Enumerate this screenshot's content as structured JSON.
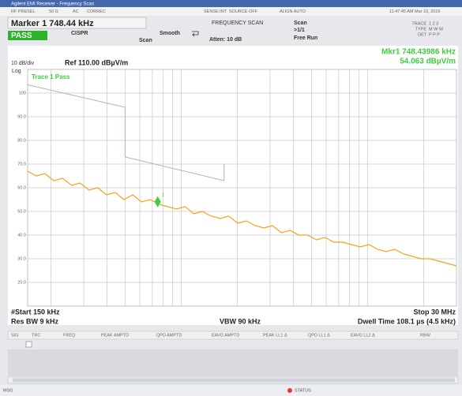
{
  "window": {
    "title": "Agilent EMI Receiver - Frequency Scan"
  },
  "status_row": [
    "RF PRESEL",
    "50 Ω",
    "AC",
    "CORREC",
    "SENSE:INT",
    "SOURCE OFF",
    "ALIGN AUTO",
    "11:47:45 AM Mar 10, 2016"
  ],
  "settings": {
    "marker": "Marker 1 748.44 kHz",
    "result": "PASS",
    "mode": "CISPR",
    "scan_label": "Scan",
    "smooth": "Smooth",
    "scan_type": "FREQUENCY SCAN",
    "atten": "Atten: 10 dB",
    "scan": "Scan",
    "scan_count": ">1/1",
    "run": "Free Run",
    "trace_rows": [
      [
        "TRACE",
        "1 2 3"
      ],
      [
        "TYPE",
        "M W W"
      ],
      [
        "DET",
        "P P P"
      ]
    ]
  },
  "chart_data": {
    "type": "line",
    "marker_readout": [
      "Mkr1 748.43986 kHz",
      "54.063 dBµV/m"
    ],
    "scale_label": "10 dB/div",
    "ref_label": "Ref 110.00 dBµV/m",
    "log_label": "Log",
    "trace_status": "Trace 1 Pass",
    "xlog": true,
    "xlim": [
      0.15,
      30
    ],
    "xticks": [
      0.2,
      0.3,
      0.4,
      0.5,
      0.6,
      0.7,
      0.8,
      0.9,
      1,
      2,
      3,
      4,
      5,
      6,
      7,
      8,
      9,
      10,
      20
    ],
    "ylim": [
      10,
      110
    ],
    "yticks": [
      {
        "value": 100,
        "label": "100"
      },
      {
        "value": 90,
        "label": "90.0"
      },
      {
        "value": 80,
        "label": "80.0"
      },
      {
        "value": 70,
        "label": "70.0"
      },
      {
        "value": 60,
        "label": "60.0"
      },
      {
        "value": 50,
        "label": "50.0"
      },
      {
        "value": 40,
        "label": "40.0"
      },
      {
        "value": 30,
        "label": "30.0"
      },
      {
        "value": 20,
        "label": "20.0"
      }
    ],
    "grid": true,
    "series": [
      {
        "color": "#f5a21e",
        "x": [
          0.15,
          0.167,
          0.186,
          0.207,
          0.231,
          0.258,
          0.287,
          0.32,
          0.357,
          0.397,
          0.443,
          0.493,
          0.55,
          0.612,
          0.682,
          0.76,
          0.847,
          0.944,
          1.05,
          1.17,
          1.3,
          1.45,
          1.62,
          1.8,
          2.01,
          2.24,
          2.49,
          2.78,
          3.09,
          3.45,
          3.84,
          4.28,
          4.77,
          5.31,
          5.92,
          6.6,
          7.35,
          8.19,
          9.12,
          10.2,
          11.3,
          12.6,
          14,
          15.6,
          17.4,
          19.4,
          21.6,
          24.1,
          26.9,
          30
        ],
        "values": [
          67,
          65,
          66,
          63,
          64,
          61,
          62,
          59,
          60,
          57,
          58,
          55,
          57,
          54,
          55,
          53,
          52,
          51,
          52,
          49,
          50,
          48,
          47,
          48,
          45,
          46,
          44,
          43,
          44,
          41,
          42,
          40,
          40,
          38,
          39,
          37,
          37,
          36,
          35,
          36,
          34,
          33,
          34,
          32,
          31,
          30,
          30,
          29,
          28,
          27
        ]
      },
      {
        "color": "#b8b39c",
        "x": [
          0.15,
          0.5,
          0.5,
          1.7,
          1.7
        ],
        "values": [
          103.5,
          94,
          73,
          63,
          70
        ]
      }
    ],
    "marker": {
      "x": 0.748,
      "value": 54.063,
      "label": "1",
      "color": "#3ecf3e"
    }
  },
  "footer": {
    "start": "#Start 150 kHz",
    "stop": "Stop 30 MHz",
    "rbw": "Res BW 9 kHz",
    "vbw": "VBW 90 kHz",
    "dwell": "Dwell Time 108.1 µs (4.5 kHz)"
  },
  "table": {
    "columns": [
      "SIG",
      "TRC",
      "FREQ",
      "PEAK AMPTD",
      "QPD AMPTD",
      "EAVG AMPTD",
      "PEAK LL1 Δ",
      "QPD LL1 Δ",
      "EAVG LL2 Δ",
      "RBW"
    ]
  },
  "statusbar": {
    "msg": "MSG",
    "status": "STATUS"
  }
}
